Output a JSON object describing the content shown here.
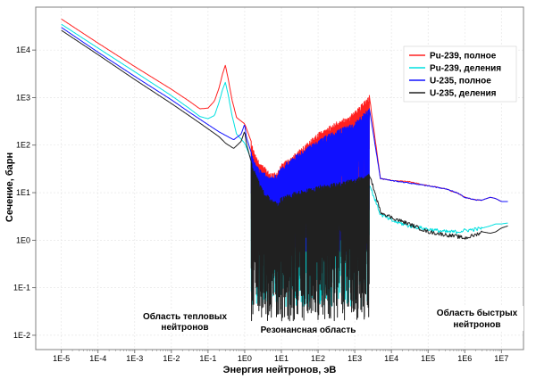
{
  "chart_data": {
    "type": "line",
    "title": "",
    "xlabel": "Энергия нейтронов, эВ",
    "ylabel": "Сечение, барн",
    "xscale": "log",
    "yscale": "log",
    "xlim": [
      2e-06,
      40000000
    ],
    "ylim": [
      0.005,
      80000
    ],
    "grid": true,
    "legend_position": "top-right",
    "x_ticks": [
      {
        "value": 1e-05,
        "label": "1E-5"
      },
      {
        "value": 0.0001,
        "label": "1E-4"
      },
      {
        "value": 0.001,
        "label": "1E-3"
      },
      {
        "value": 0.01,
        "label": "1E-2"
      },
      {
        "value": 0.1,
        "label": "1E-1"
      },
      {
        "value": 1,
        "label": "1E0"
      },
      {
        "value": 10,
        "label": "1E1"
      },
      {
        "value": 100,
        "label": "1E2"
      },
      {
        "value": 1000,
        "label": "1E3"
      },
      {
        "value": 10000,
        "label": "1E4"
      },
      {
        "value": 100000,
        "label": "1E5"
      },
      {
        "value": 1000000,
        "label": "1E6"
      },
      {
        "value": 10000000,
        "label": "1E7"
      }
    ],
    "y_ticks": [
      {
        "value": 0.01,
        "label": "1E-2"
      },
      {
        "value": 0.1,
        "label": "1E-1"
      },
      {
        "value": 1,
        "label": "1E0"
      },
      {
        "value": 10,
        "label": "1E1"
      },
      {
        "value": 100,
        "label": "1E2"
      },
      {
        "value": 1000,
        "label": "1E3"
      },
      {
        "value": 10000,
        "label": "1E4"
      }
    ],
    "series": [
      {
        "name": "Pu-239, полное",
        "color": "#ff2020",
        "x": [
          1e-05,
          0.0001,
          0.001,
          0.01,
          0.03,
          0.06,
          0.1,
          0.15,
          0.2,
          0.25,
          0.296,
          0.35,
          0.45,
          0.6,
          1,
          1.5,
          2,
          3,
          5,
          8,
          10,
          20,
          50,
          100,
          300,
          1000,
          2500,
          5000,
          10000,
          30000,
          100000,
          300000,
          600000,
          1000000,
          2000000,
          3000000,
          5000000,
          7000000,
          10000000,
          15000000
        ],
        "y": [
          45000,
          14000,
          4500,
          1500,
          850,
          580,
          600,
          850,
          1600,
          3200,
          4800,
          2600,
          900,
          380,
          280,
          120,
          60,
          40,
          25,
          28,
          40,
          60,
          110,
          180,
          300,
          500,
          1100,
          20,
          18,
          17,
          14,
          12,
          10,
          8,
          7,
          7,
          8,
          7.5,
          6.5,
          6.5
        ]
      },
      {
        "name": "Pu-239, деления",
        "color": "#00e0e0",
        "x": [
          1e-05,
          0.0001,
          0.001,
          0.01,
          0.03,
          0.06,
          0.1,
          0.15,
          0.2,
          0.25,
          0.296,
          0.35,
          0.45,
          0.6,
          1,
          1.5,
          2,
          3,
          5,
          8,
          10,
          20,
          50,
          100,
          300,
          1000,
          2500,
          5000,
          10000,
          30000,
          100000,
          300000,
          600000,
          1000000,
          2000000,
          3000000,
          5000000,
          7000000,
          10000000,
          15000000
        ],
        "y": [
          35000,
          11000,
          3500,
          1100,
          600,
          400,
          360,
          420,
          800,
          1500,
          2100,
          1200,
          420,
          170,
          110,
          50,
          22,
          10,
          3,
          1.5,
          2,
          3,
          5,
          6,
          8,
          10,
          15,
          3.5,
          2.6,
          2,
          1.7,
          1.5,
          1.5,
          1.6,
          1.7,
          1.8,
          2,
          2.2,
          2.2,
          2.3
        ]
      },
      {
        "name": "U-235, полное",
        "color": "#1010ff",
        "x": [
          1e-05,
          0.0001,
          0.001,
          0.01,
          0.03,
          0.06,
          0.1,
          0.2,
          0.3,
          0.5,
          0.8,
          1,
          1.1,
          1.5,
          2,
          3,
          5,
          8,
          10,
          20,
          50,
          100,
          300,
          1000,
          2500,
          5000,
          10000,
          30000,
          100000,
          300000,
          600000,
          1000000,
          2000000,
          3000000,
          5000000,
          7000000,
          10000000,
          15000000
        ],
        "y": [
          30000,
          9000,
          2800,
          900,
          500,
          350,
          270,
          190,
          160,
          130,
          170,
          280,
          150,
          70,
          40,
          28,
          22,
          25,
          35,
          55,
          90,
          130,
          200,
          300,
          600,
          20,
          18,
          16,
          14,
          12,
          10,
          8,
          7,
          7,
          8,
          7.5,
          6.5,
          6.5
        ]
      },
      {
        "name": "U-235, деления",
        "color": "#202020",
        "x": [
          1e-05,
          0.0001,
          0.001,
          0.01,
          0.03,
          0.06,
          0.1,
          0.2,
          0.3,
          0.5,
          0.8,
          1,
          1.1,
          1.5,
          2,
          3,
          5,
          8,
          10,
          20,
          50,
          100,
          300,
          1000,
          2500,
          5000,
          10000,
          30000,
          100000,
          300000,
          600000,
          1000000,
          2000000,
          3000000,
          5000000,
          7000000,
          10000000,
          15000000
        ],
        "y": [
          26000,
          8000,
          2400,
          750,
          420,
          290,
          220,
          150,
          110,
          85,
          120,
          200,
          110,
          45,
          25,
          12,
          8,
          6,
          8,
          10,
          12,
          14,
          16,
          20,
          25,
          4,
          3,
          2.2,
          1.5,
          1.3,
          1.2,
          1.1,
          1.3,
          1.5,
          1.4,
          1.5,
          1.8,
          2
        ]
      }
    ],
    "resonance_region": {
      "x_start": 1.5,
      "x_end": 2500
    },
    "annotations": [
      {
        "lines": [
          "Область тепловых",
          "нейтронов"
        ]
      },
      {
        "lines": [
          "Резонансная область"
        ]
      },
      {
        "lines": [
          "Область быстрых",
          "нейтронов"
        ]
      }
    ]
  }
}
